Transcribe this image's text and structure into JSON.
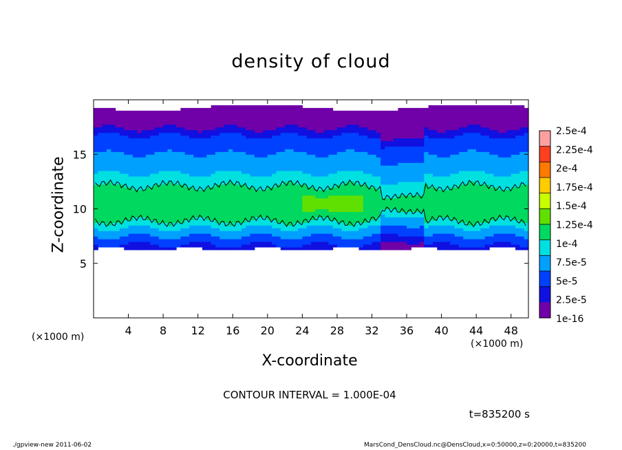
{
  "chart_data": {
    "type": "heatmap",
    "title": "density of cloud",
    "xlabel": "X-coordinate",
    "ylabel": "Z-coordinate",
    "x_unit": "(×1000 m)",
    "y_unit": "(×1000 m)",
    "xlim": [
      0,
      50
    ],
    "ylim": [
      0,
      20
    ],
    "x_ticks": [
      "4",
      "8",
      "12",
      "16",
      "20",
      "24",
      "28",
      "32",
      "36",
      "40",
      "44",
      "48"
    ],
    "x_tick_values": [
      4,
      8,
      12,
      16,
      20,
      24,
      28,
      32,
      36,
      40,
      44,
      48
    ],
    "y_ticks": [
      "5",
      "10",
      "15"
    ],
    "y_tick_values": [
      5,
      10,
      15
    ],
    "colorbar": {
      "labels": [
        "2.5e-4",
        "2.25e-4",
        "2e-4",
        "1.75e-4",
        "1.5e-4",
        "1.25e-4",
        "1e-4",
        "7.5e-5",
        "5e-5",
        "2.5e-5",
        "1e-16"
      ],
      "colors": [
        "#ffa0a0",
        "#ff4020",
        "#ff7a00",
        "#ffcc00",
        "#c8ff00",
        "#60e000",
        "#00d860",
        "#00e0e0",
        "#00a0ff",
        "#0040ff",
        "#1010e0",
        "#7000a8"
      ]
    },
    "cloud_layer": {
      "base_z": 6.3,
      "top_z": 19.3,
      "max_density_z": 10.5,
      "contour_level": 0.0001
    }
  },
  "contour_interval_text": "CONTOUR INTERVAL = 1.000E-04",
  "time_text": "t=835200 s",
  "footer_left": "./gpview-new  2011-06-02",
  "footer_right": "MarsCond_DensCloud.nc@DensCloud,x=0:50000,z=0:20000,t=835200"
}
